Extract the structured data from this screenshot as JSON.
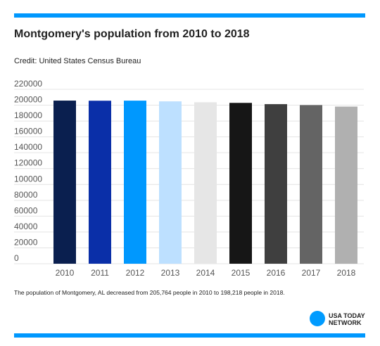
{
  "header": {
    "title": "Montgomery's population from 2010 to 2018",
    "credit": "Credit: United States Census Bureau"
  },
  "footer": {
    "note": "The population of Montgomery, AL decreased from 205,764 people in 2010 to 198,218 people in 2018.",
    "logo_line1": "USA TODAY",
    "logo_line2": "NETWORK"
  },
  "colors": {
    "accent_rule": "#0098fe",
    "logo_dot": "#009bff",
    "bars": [
      "#0a1f4f",
      "#0a2fa8",
      "#0098fe",
      "#bde0ff",
      "#e6e6e6",
      "#161616",
      "#3f3f3f",
      "#646464",
      "#b0b0b0"
    ]
  },
  "chart_data": {
    "type": "bar",
    "categories": [
      "2010",
      "2011",
      "2012",
      "2013",
      "2014",
      "2015",
      "2016",
      "2017",
      "2018"
    ],
    "values": [
      205764,
      205600,
      205700,
      204800,
      203700,
      202900,
      201300,
      200100,
      198218
    ],
    "yticks": [
      0,
      20000,
      40000,
      60000,
      80000,
      100000,
      120000,
      140000,
      160000,
      180000,
      200000,
      220000
    ],
    "ylim": [
      0,
      220000
    ],
    "grid": true,
    "legend": "none"
  }
}
